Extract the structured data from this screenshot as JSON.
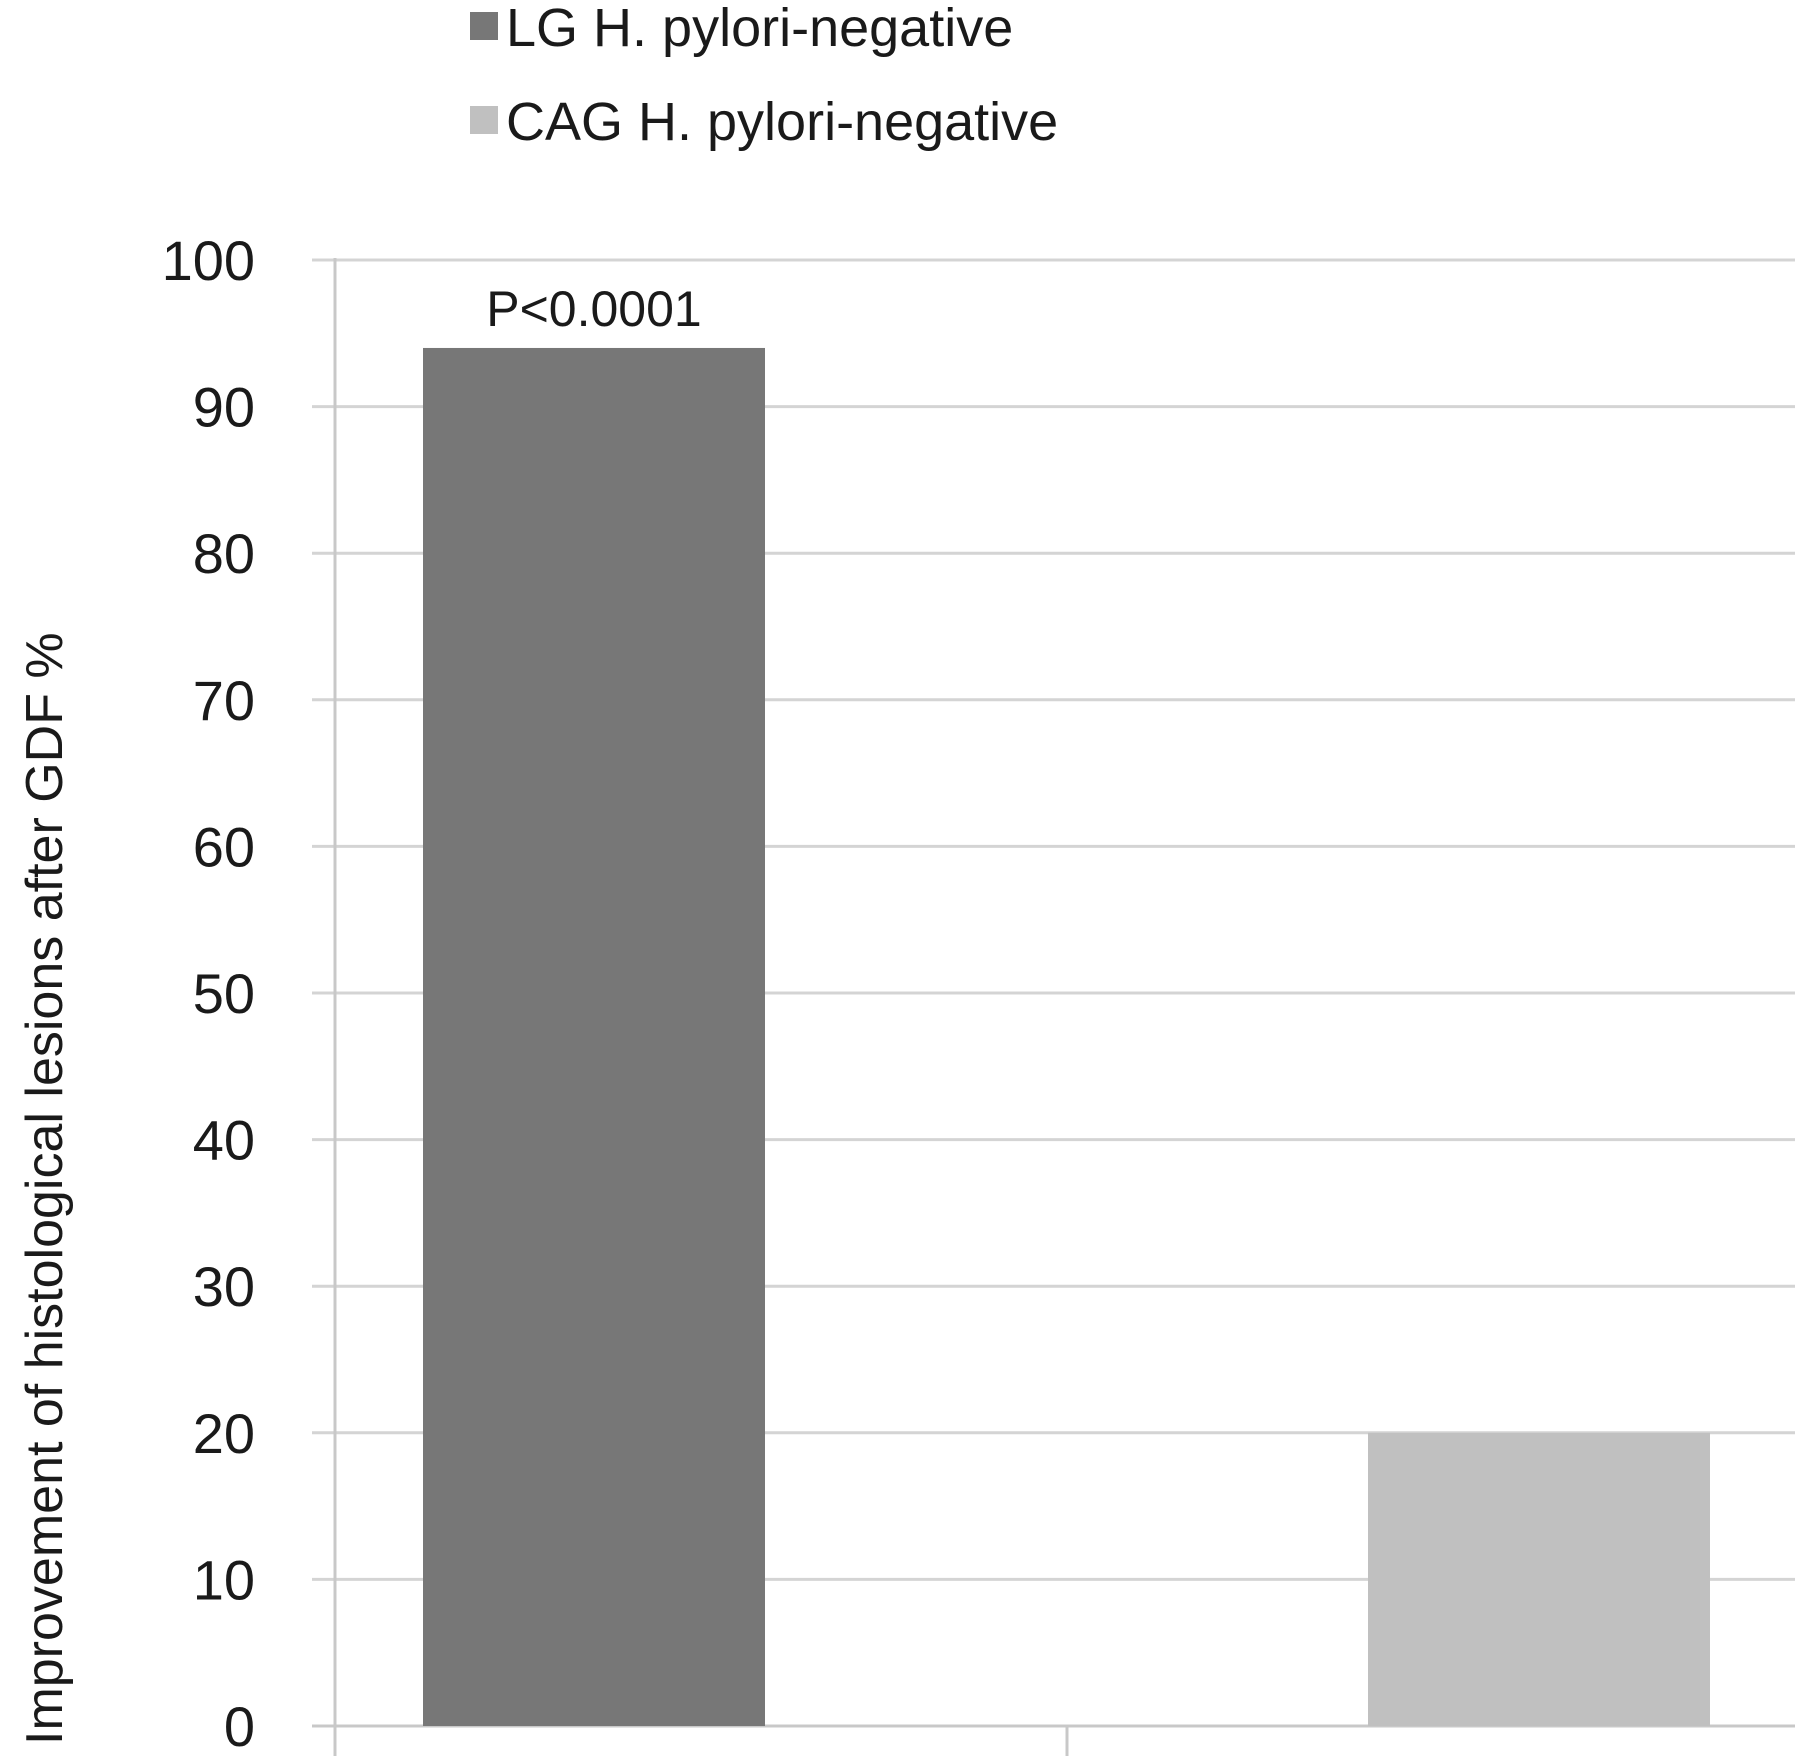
{
  "chart_data": {
    "type": "bar",
    "title": "",
    "xlabel": "",
    "ylabel": "Improvement of histological lesions after GDF %",
    "ylim": [
      0,
      100
    ],
    "yticks": [
      0,
      10,
      20,
      30,
      40,
      50,
      60,
      70,
      80,
      90,
      100
    ],
    "grid": true,
    "legend_position": "top",
    "series": [
      {
        "name": "LG H. pylori-negative",
        "value": 94,
        "color": "#777777"
      },
      {
        "name": "CAG H. pylori-negative",
        "value": 20,
        "color": "#c0c0c0"
      }
    ],
    "annotations": [
      {
        "text": "P<0.0001",
        "series_index": 0
      }
    ],
    "colors": {
      "grid": "#d4d4d4",
      "axis": "#c8c8c8"
    }
  }
}
